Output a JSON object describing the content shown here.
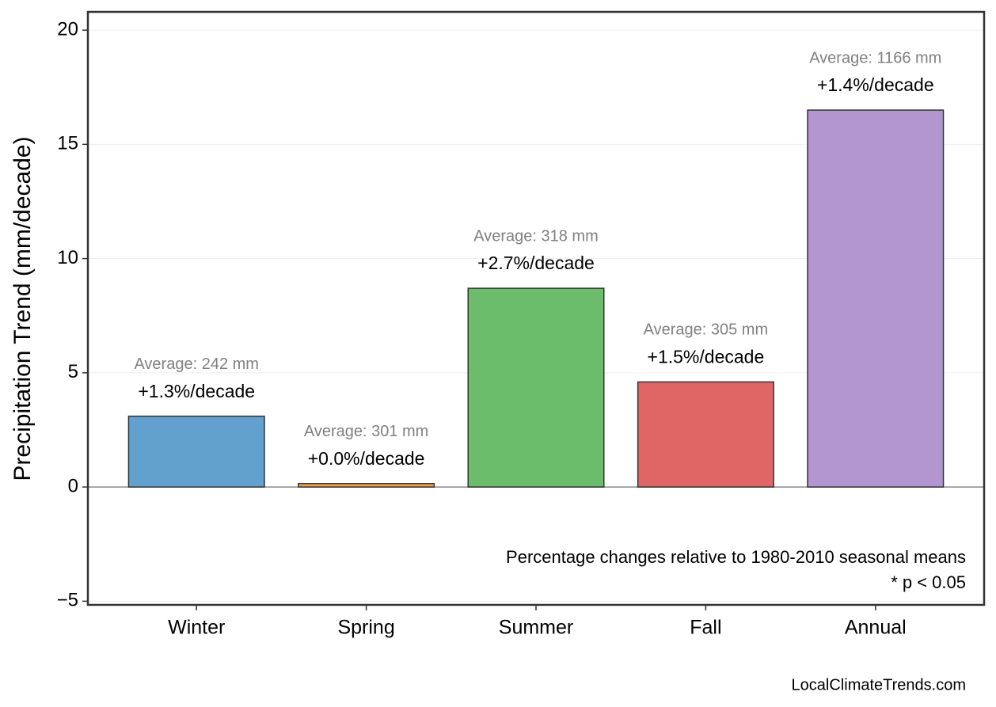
{
  "chart_data": {
    "type": "bar",
    "y_label": "Precipitation Trend (mm/decade)",
    "categories": [
      "Winter",
      "Spring",
      "Summer",
      "Fall",
      "Annual"
    ],
    "values": [
      3.1,
      0.15,
      8.7,
      4.6,
      16.5
    ],
    "colors": [
      "#62a0cd",
      "#f5a04a",
      "#6bbd6b",
      "#e06666",
      "#b395d0"
    ],
    "percent_labels": [
      "+1.3%/decade",
      "+0.0%/decade",
      "+2.7%/decade",
      "+1.5%/decade",
      "+1.4%/decade"
    ],
    "average_labels": [
      "Average: 242 mm",
      "Average: 301 mm",
      "Average: 318 mm",
      "Average: 305 mm",
      "Average: 1166 mm"
    ],
    "ylim": [
      -5.16,
      20.8
    ],
    "yticks": [
      {
        "value": -5,
        "label": "−5"
      },
      0,
      5,
      10,
      15,
      20
    ],
    "grid": true,
    "notes": [
      "Percentage changes relative to 1980-2010 seasonal means",
      "* p < 0.05"
    ],
    "source": "LocalClimateTrends.com"
  }
}
